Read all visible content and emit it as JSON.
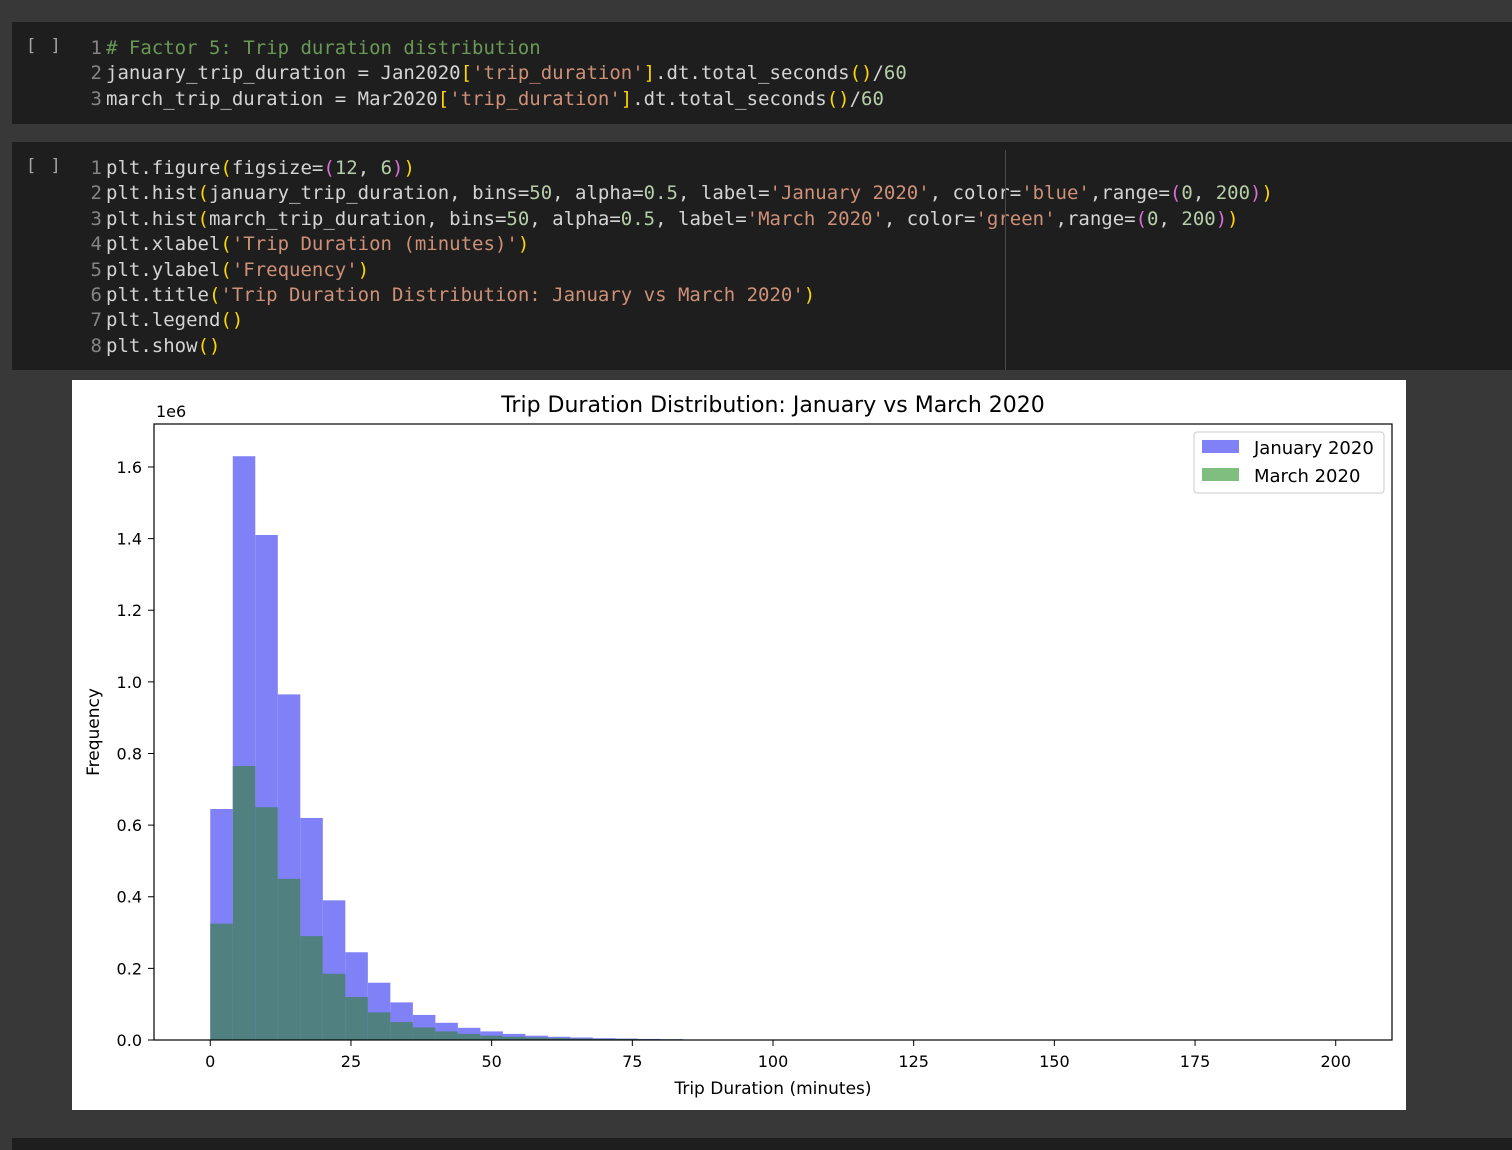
{
  "cells": [
    {
      "run_label": "[ ]",
      "lines": [
        {
          "n": "1",
          "seg": [
            [
              "cm",
              "# Factor 5: Trip duration distribution"
            ]
          ]
        },
        {
          "n": "2",
          "seg": [
            [
              "",
              "january_trip_duration = Jan2020"
            ],
            [
              "p1",
              "["
            ],
            [
              "st",
              "'trip_duration'"
            ],
            [
              "p1",
              "]"
            ],
            [
              "",
              ".dt.total_seconds"
            ],
            [
              "p1",
              "()"
            ],
            [
              "",
              "/"
            ],
            [
              "nu",
              "60"
            ]
          ]
        },
        {
          "n": "3",
          "seg": [
            [
              "",
              "march_trip_duration = Mar2020"
            ],
            [
              "p1",
              "["
            ],
            [
              "st",
              "'trip_duration'"
            ],
            [
              "p1",
              "]"
            ],
            [
              "",
              ".dt.total_seconds"
            ],
            [
              "p1",
              "()"
            ],
            [
              "",
              "/"
            ],
            [
              "nu",
              "60"
            ]
          ]
        }
      ]
    },
    {
      "run_label": "[ ]",
      "lines": [
        {
          "n": "1",
          "seg": [
            [
              "",
              "plt.figure"
            ],
            [
              "p1",
              "("
            ],
            [
              "",
              "figsize="
            ],
            [
              "p2",
              "("
            ],
            [
              "nu",
              "12"
            ],
            [
              "",
              ", "
            ],
            [
              "nu",
              "6"
            ],
            [
              "p2",
              ")"
            ],
            [
              "p1",
              ")"
            ]
          ]
        },
        {
          "n": "2",
          "seg": [
            [
              "",
              "plt.hist"
            ],
            [
              "p1",
              "("
            ],
            [
              "",
              "january_trip_duration, bins="
            ],
            [
              "nu",
              "50"
            ],
            [
              "",
              ", alpha="
            ],
            [
              "nu",
              "0.5"
            ],
            [
              "",
              ", label="
            ],
            [
              "st",
              "'January 2020'"
            ],
            [
              "",
              ", color="
            ],
            [
              "st",
              "'blue'"
            ],
            [
              "",
              ",range="
            ],
            [
              "p2",
              "("
            ],
            [
              "nu",
              "0"
            ],
            [
              "",
              ", "
            ],
            [
              "nu",
              "200"
            ],
            [
              "p2",
              ")"
            ],
            [
              "p1",
              ")"
            ]
          ]
        },
        {
          "n": "3",
          "seg": [
            [
              "",
              "plt.hist"
            ],
            [
              "p1",
              "("
            ],
            [
              "",
              "march_trip_duration, bins="
            ],
            [
              "nu",
              "50"
            ],
            [
              "",
              ", alpha="
            ],
            [
              "nu",
              "0.5"
            ],
            [
              "",
              ", label="
            ],
            [
              "st",
              "'March 2020'"
            ],
            [
              "",
              ", color="
            ],
            [
              "st",
              "'green'"
            ],
            [
              "",
              ",range="
            ],
            [
              "p2",
              "("
            ],
            [
              "nu",
              "0"
            ],
            [
              "",
              ", "
            ],
            [
              "nu",
              "200"
            ],
            [
              "p2",
              ")"
            ],
            [
              "p1",
              ")"
            ]
          ]
        },
        {
          "n": "4",
          "seg": [
            [
              "",
              "plt.xlabel"
            ],
            [
              "p1",
              "("
            ],
            [
              "st",
              "'Trip Duration (minutes)'"
            ],
            [
              "p1",
              ")"
            ]
          ]
        },
        {
          "n": "5",
          "seg": [
            [
              "",
              "plt.ylabel"
            ],
            [
              "p1",
              "("
            ],
            [
              "st",
              "'Frequency'"
            ],
            [
              "p1",
              ")"
            ]
          ]
        },
        {
          "n": "6",
          "seg": [
            [
              "",
              "plt.title"
            ],
            [
              "p1",
              "("
            ],
            [
              "st",
              "'Trip Duration Distribution: January vs March 2020'"
            ],
            [
              "p1",
              ")"
            ]
          ]
        },
        {
          "n": "7",
          "seg": [
            [
              "",
              "plt.legend"
            ],
            [
              "p1",
              "()"
            ]
          ]
        },
        {
          "n": "8",
          "seg": [
            [
              "",
              "plt.show"
            ],
            [
              "p1",
              "()"
            ]
          ]
        }
      ]
    }
  ],
  "chart_data": {
    "type": "bar",
    "title": "Trip Duration Distribution: January vs March 2020",
    "xlabel": "Trip Duration (minutes)",
    "ylabel": "Frequency",
    "y_multiplier": "1e6",
    "xlim": [
      -10,
      210
    ],
    "ylim": [
      0,
      1.72
    ],
    "xticks": [
      0,
      25,
      50,
      75,
      100,
      125,
      150,
      175,
      200
    ],
    "yticks": [
      "0.0",
      "0.2",
      "0.4",
      "0.6",
      "0.8",
      "1.0",
      "1.2",
      "1.4",
      "1.6"
    ],
    "bin_width": 4,
    "legend_position": "top-right",
    "series": [
      {
        "name": "January 2020",
        "color": "#8080f7",
        "bin_starts": [
          0,
          4,
          8,
          12,
          16,
          20,
          24,
          28,
          32,
          36,
          40,
          44,
          48,
          52,
          56,
          60,
          64,
          68,
          72,
          76,
          80
        ],
        "values": [
          0.645,
          1.63,
          1.41,
          0.965,
          0.62,
          0.39,
          0.245,
          0.16,
          0.105,
          0.07,
          0.048,
          0.034,
          0.024,
          0.017,
          0.012,
          0.009,
          0.007,
          0.005,
          0.004,
          0.003,
          0.002
        ]
      },
      {
        "name": "March 2020",
        "color": "#508080",
        "legend_color": "#80be80",
        "bin_starts": [
          0,
          4,
          8,
          12,
          16,
          20,
          24,
          28,
          32,
          36,
          40,
          44,
          48,
          52,
          56,
          60,
          64,
          68,
          72,
          76,
          80
        ],
        "values": [
          0.325,
          0.765,
          0.65,
          0.45,
          0.29,
          0.185,
          0.12,
          0.077,
          0.05,
          0.035,
          0.024,
          0.017,
          0.012,
          0.009,
          0.007,
          0.005,
          0.004,
          0.003,
          0.003,
          0.002,
          0.002
        ]
      }
    ]
  }
}
